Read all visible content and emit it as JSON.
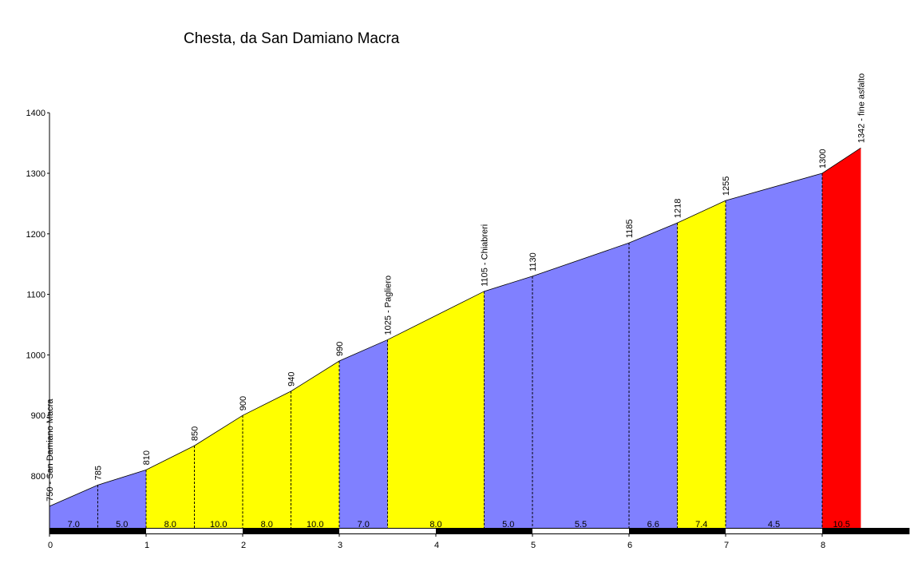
{
  "chart_data": {
    "type": "area",
    "title": "Chesta, da San Damiano Macra",
    "xlabel": "",
    "ylabel": "",
    "xlim": [
      0,
      8.9
    ],
    "ylim": [
      710,
      1400
    ],
    "x_ticks": [
      0,
      1,
      2,
      3,
      4,
      5,
      6,
      7,
      8
    ],
    "y_ticks": [
      800,
      900,
      1000,
      1100,
      1200,
      1300,
      1400
    ],
    "colors": {
      "shallow": "#8080ff",
      "medium": "#ffff00",
      "steep": "#ff0000"
    },
    "points": [
      {
        "x": 0.0,
        "y": 750,
        "label": "750 - San Damiano Macra"
      },
      {
        "x": 0.5,
        "y": 785,
        "label": "785"
      },
      {
        "x": 1.0,
        "y": 810,
        "label": "810"
      },
      {
        "x": 1.5,
        "y": 850,
        "label": "850"
      },
      {
        "x": 2.0,
        "y": 900,
        "label": "900"
      },
      {
        "x": 2.5,
        "y": 940,
        "label": "940"
      },
      {
        "x": 3.0,
        "y": 990,
        "label": "990"
      },
      {
        "x": 3.5,
        "y": 1025,
        "label": "1025 - Pagliero"
      },
      {
        "x": 4.5,
        "y": 1105,
        "label": "1105 - Chiabreri"
      },
      {
        "x": 5.0,
        "y": 1130,
        "label": "1130"
      },
      {
        "x": 6.0,
        "y": 1185,
        "label": "1185"
      },
      {
        "x": 6.5,
        "y": 1218,
        "label": "1218"
      },
      {
        "x": 7.0,
        "y": 1255,
        "label": "1255"
      },
      {
        "x": 8.0,
        "y": 1300,
        "label": "1300"
      },
      {
        "x": 8.4,
        "y": 1342,
        "label": "1342 - fine asfalto"
      }
    ],
    "segments": [
      {
        "grade": "7.0",
        "color": "shallow"
      },
      {
        "grade": "5.0",
        "color": "shallow"
      },
      {
        "grade": "8.0",
        "color": "medium"
      },
      {
        "grade": "10.0",
        "color": "medium"
      },
      {
        "grade": "8.0",
        "color": "medium"
      },
      {
        "grade": "10.0",
        "color": "medium"
      },
      {
        "grade": "7.0",
        "color": "shallow"
      },
      {
        "grade": "8.0",
        "color": "medium"
      },
      {
        "grade": "5.0",
        "color": "shallow"
      },
      {
        "grade": "5.5",
        "color": "shallow"
      },
      {
        "grade": "6.6",
        "color": "shallow"
      },
      {
        "grade": "7.4",
        "color": "medium"
      },
      {
        "grade": "4.5",
        "color": "shallow"
      },
      {
        "grade": "10.5",
        "color": "steep"
      }
    ]
  }
}
